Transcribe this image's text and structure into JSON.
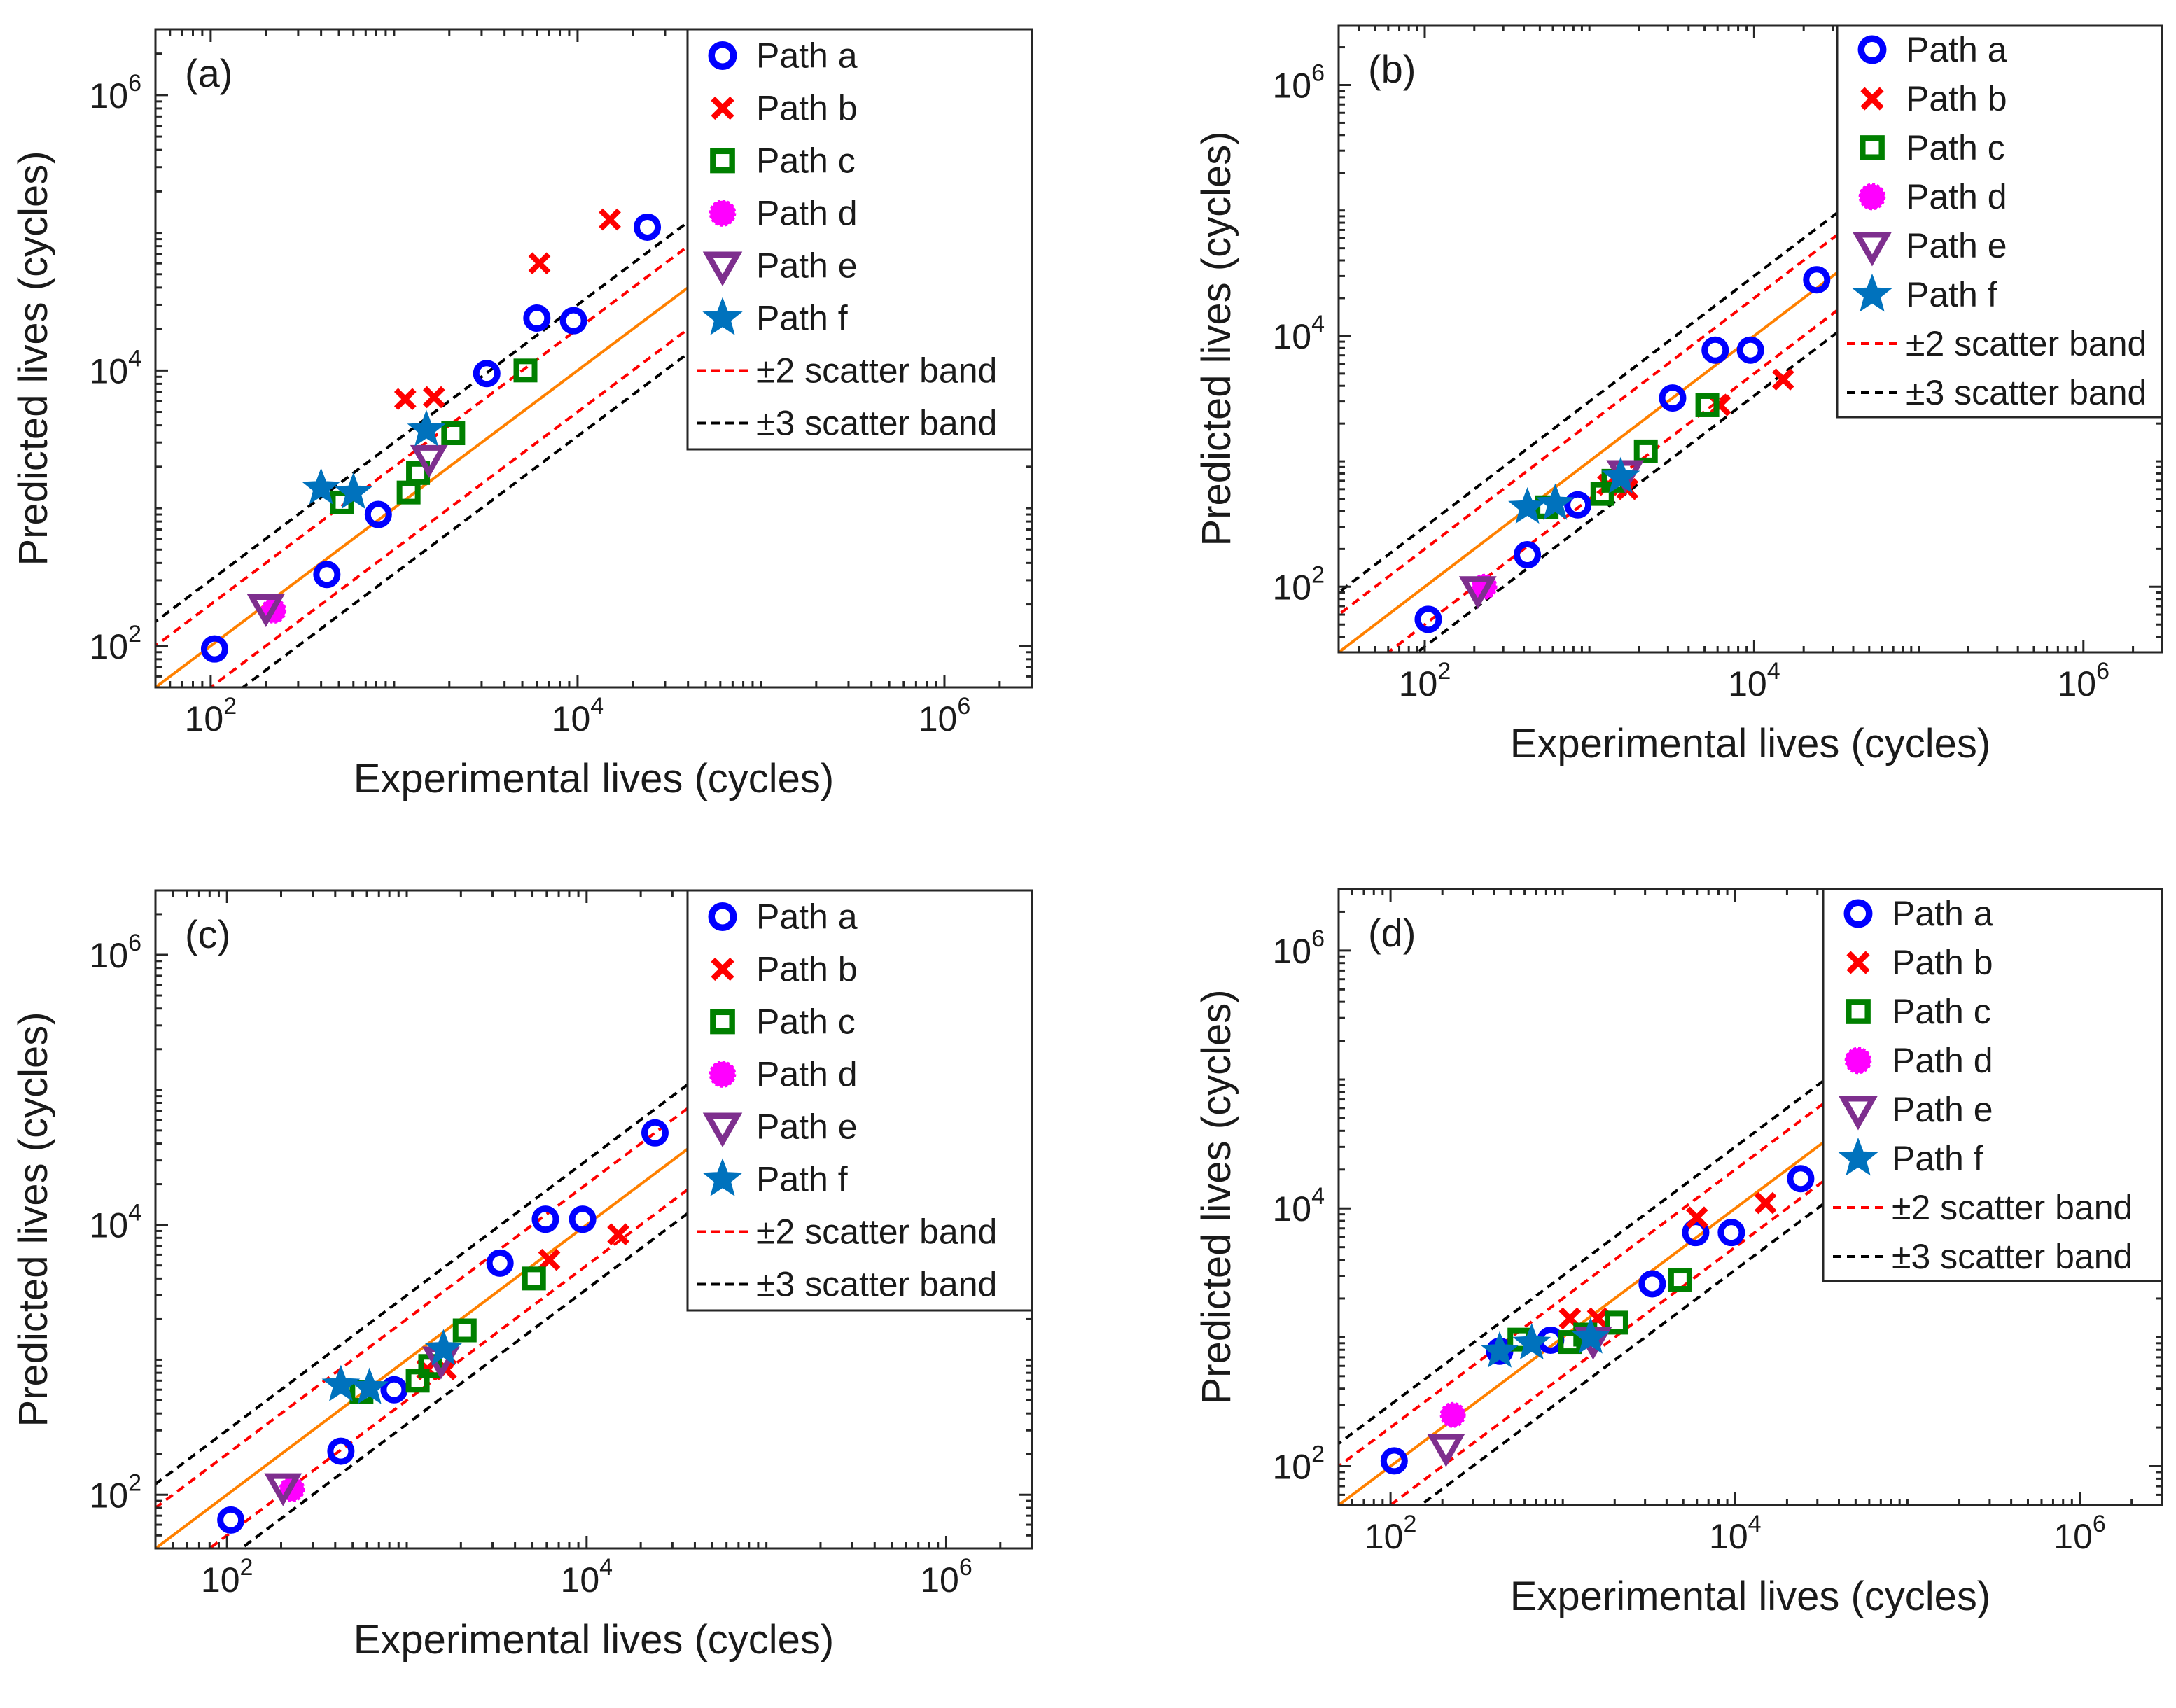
{
  "chart_data": [
    {
      "type": "scatter",
      "panel_label": "(a)",
      "xlabel": "Experimental lives (cycles)",
      "ylabel": "Predicted lives (cycles)",
      "xscale": "log",
      "yscale": "log",
      "xlim": [
        50,
        3000000
      ],
      "ylim": [
        50,
        3000000
      ],
      "xticks": [
        {
          "base": "10",
          "exp": "2",
          "value": 100
        },
        {
          "base": "10",
          "exp": "4",
          "value": 10000
        },
        {
          "base": "10",
          "exp": "6",
          "value": 1000000
        }
      ],
      "yticks": [
        {
          "base": "10",
          "exp": "2",
          "value": 100
        },
        {
          "base": "10",
          "exp": "4",
          "value": 10000
        },
        {
          "base": "10",
          "exp": "6",
          "value": 1000000
        }
      ],
      "legend_position": "top-right",
      "legend": [
        "Path a",
        "Path b",
        "Path c",
        "Path d",
        "Path e",
        "Path f",
        "±2 scatter band",
        "±3 scatter band"
      ],
      "series": [
        {
          "name": "Path a",
          "marker": "circle",
          "color": "#0000ff",
          "points": [
            [
              105,
              95
            ],
            [
              430,
              330
            ],
            [
              820,
              900
            ],
            [
              3200,
              9500
            ],
            [
              6000,
              24000
            ],
            [
              9500,
              23000
            ],
            [
              24000,
              110000
            ]
          ]
        },
        {
          "name": "Path b",
          "marker": "x",
          "color": "#ff0000",
          "points": [
            [
              1150,
              6200
            ],
            [
              1650,
              6400
            ],
            [
              6200,
              60000
            ],
            [
              15000,
              125000
            ]
          ]
        },
        {
          "name": "Path c",
          "marker": "square",
          "color": "#008000",
          "points": [
            [
              520,
              1100
            ],
            [
              1200,
              1300
            ],
            [
              1350,
              1800
            ],
            [
              2100,
              3500
            ],
            [
              5200,
              10000
            ]
          ]
        },
        {
          "name": "Path d",
          "marker": "filled-circle",
          "color": "#ff00ff",
          "points": [
            [
              220,
              180
            ]
          ]
        },
        {
          "name": "Path e",
          "marker": "triangle-down",
          "color": "#7e2f8e",
          "points": [
            [
              200,
              190
            ],
            [
              1550,
              2300
            ]
          ]
        },
        {
          "name": "Path f",
          "marker": "star",
          "color": "#0072bd",
          "points": [
            [
              400,
              1400
            ],
            [
              600,
              1300
            ],
            [
              1500,
              3700
            ]
          ]
        }
      ],
      "reference_lines": [
        {
          "name": "1:1 line",
          "factor": 1,
          "color": "#ff8000",
          "dash": "solid"
        },
        {
          "name": "±2 scatter band",
          "factor": 2,
          "color": "#ff0000",
          "dash": "dashed"
        },
        {
          "name": "±3 scatter band",
          "factor": 3,
          "color": "#000000",
          "dash": "dashed"
        }
      ]
    },
    {
      "type": "scatter",
      "panel_label": "(b)",
      "xlabel": "Experimental lives (cycles)",
      "ylabel": "Predicted lives (cycles)",
      "xscale": "log",
      "yscale": "log",
      "xlim": [
        30,
        3000000
      ],
      "ylim": [
        30,
        3000000
      ],
      "xticks": [
        {
          "base": "10",
          "exp": "2",
          "value": 100
        },
        {
          "base": "10",
          "exp": "4",
          "value": 10000
        },
        {
          "base": "10",
          "exp": "6",
          "value": 1000000
        }
      ],
      "yticks": [
        {
          "base": "10",
          "exp": "2",
          "value": 100
        },
        {
          "base": "10",
          "exp": "4",
          "value": 10000
        },
        {
          "base": "10",
          "exp": "6",
          "value": 1000000
        }
      ],
      "legend_position": "top-right",
      "legend": [
        "Path a",
        "Path b",
        "Path c",
        "Path d",
        "Path e",
        "Path f",
        "±2 scatter band",
        "±3 scatter band"
      ],
      "series": [
        {
          "name": "Path a",
          "marker": "circle",
          "color": "#0000ff",
          "points": [
            [
              105,
              55
            ],
            [
              420,
              180
            ],
            [
              850,
              450
            ],
            [
              3200,
              3200
            ],
            [
              5800,
              7700
            ],
            [
              9500,
              7700
            ],
            [
              24000,
              28000
            ]
          ]
        },
        {
          "name": "Path b",
          "marker": "x",
          "color": "#ff0000",
          "points": [
            [
              1300,
              650
            ],
            [
              1700,
              600
            ],
            [
              6200,
              2800
            ],
            [
              15000,
              4500
            ]
          ]
        },
        {
          "name": "Path c",
          "marker": "square",
          "color": "#008000",
          "points": [
            [
              550,
              430
            ],
            [
              1200,
              550
            ],
            [
              1400,
              700
            ],
            [
              2200,
              1200
            ],
            [
              5200,
              2800
            ]
          ]
        },
        {
          "name": "Path d",
          "marker": "filled-circle",
          "color": "#ff00ff",
          "points": [
            [
              230,
              100
            ]
          ]
        },
        {
          "name": "Path e",
          "marker": "triangle-down",
          "color": "#7e2f8e",
          "points": [
            [
              210,
              95
            ],
            [
              1650,
              800
            ]
          ]
        },
        {
          "name": "Path f",
          "marker": "star",
          "color": "#0072bd",
          "points": [
            [
              420,
              430
            ],
            [
              620,
              460
            ],
            [
              1550,
              750
            ]
          ]
        }
      ],
      "reference_lines": [
        {
          "name": "1:1 line",
          "factor": 1,
          "color": "#ff8000",
          "dash": "solid"
        },
        {
          "name": "±2 scatter band",
          "factor": 2,
          "color": "#ff0000",
          "dash": "dashed"
        },
        {
          "name": "±3 scatter band",
          "factor": 3,
          "color": "#000000",
          "dash": "dashed"
        }
      ]
    },
    {
      "type": "scatter",
      "panel_label": "(c)",
      "xlabel": "Experimental lives (cycles)",
      "ylabel": "Predicted lives (cycles)",
      "xscale": "log",
      "yscale": "log",
      "xlim": [
        40,
        3000000
      ],
      "ylim": [
        40,
        3000000
      ],
      "xticks": [
        {
          "base": "10",
          "exp": "2",
          "value": 100
        },
        {
          "base": "10",
          "exp": "4",
          "value": 10000
        },
        {
          "base": "10",
          "exp": "6",
          "value": 1000000
        }
      ],
      "yticks": [
        {
          "base": "10",
          "exp": "2",
          "value": 100
        },
        {
          "base": "10",
          "exp": "4",
          "value": 10000
        },
        {
          "base": "10",
          "exp": "6",
          "value": 1000000
        }
      ],
      "legend_position": "top-right",
      "legend": [
        "Path a",
        "Path b",
        "Path c",
        "Path d",
        "Path e",
        "Path f",
        "±2 scatter band",
        "±3 scatter band"
      ],
      "series": [
        {
          "name": "Path a",
          "marker": "circle",
          "color": "#0000ff",
          "points": [
            [
              105,
              65
            ],
            [
              430,
              210
            ],
            [
              850,
              600
            ],
            [
              3300,
              5200
            ],
            [
              5900,
              11000
            ],
            [
              9500,
              11000
            ],
            [
              24000,
              48000
            ]
          ]
        },
        {
          "name": "Path b",
          "marker": "x",
          "color": "#ff0000",
          "points": [
            [
              1300,
              850
            ],
            [
              1650,
              850
            ],
            [
              6200,
              5500
            ],
            [
              15000,
              8500
            ]
          ]
        },
        {
          "name": "Path c",
          "marker": "square",
          "color": "#008000",
          "points": [
            [
              560,
              580
            ],
            [
              1150,
              700
            ],
            [
              1350,
              900
            ],
            [
              2100,
              1650
            ],
            [
              5100,
              4000
            ]
          ]
        },
        {
          "name": "Path d",
          "marker": "filled-circle",
          "color": "#ff00ff",
          "points": [
            [
              230,
              110
            ]
          ]
        },
        {
          "name": "Path e",
          "marker": "triangle-down",
          "color": "#7e2f8e",
          "points": [
            [
              205,
              115
            ],
            [
              1550,
              1000
            ]
          ]
        },
        {
          "name": "Path f",
          "marker": "star",
          "color": "#0072bd",
          "points": [
            [
              430,
              650
            ],
            [
              620,
              620
            ],
            [
              1600,
              1200
            ]
          ]
        }
      ],
      "reference_lines": [
        {
          "name": "1:1 line",
          "factor": 1,
          "color": "#ff8000",
          "dash": "solid"
        },
        {
          "name": "±2 scatter band",
          "factor": 2,
          "color": "#ff0000",
          "dash": "dashed"
        },
        {
          "name": "±3 scatter band",
          "factor": 3,
          "color": "#000000",
          "dash": "dashed"
        }
      ]
    },
    {
      "type": "scatter",
      "panel_label": "(d)",
      "xlabel": "Experimental lives (cycles)",
      "ylabel": "Predicted lives (cycles)",
      "xscale": "log",
      "yscale": "log",
      "xlim": [
        50,
        3000000
      ],
      "ylim": [
        50,
        3000000
      ],
      "xticks": [
        {
          "base": "10",
          "exp": "2",
          "value": 100
        },
        {
          "base": "10",
          "exp": "4",
          "value": 10000
        },
        {
          "base": "10",
          "exp": "6",
          "value": 1000000
        }
      ],
      "yticks": [
        {
          "base": "10",
          "exp": "2",
          "value": 100
        },
        {
          "base": "10",
          "exp": "4",
          "value": 10000
        },
        {
          "base": "10",
          "exp": "6",
          "value": 1000000
        }
      ],
      "legend_position": "top-right",
      "legend": [
        "Path a",
        "Path b",
        "Path c",
        "Path d",
        "Path e",
        "Path f",
        "±2 scatter band",
        "±3 scatter band"
      ],
      "series": [
        {
          "name": "Path a",
          "marker": "circle",
          "color": "#0000ff",
          "points": [
            [
              105,
              110
            ],
            [
              430,
              780
            ],
            [
              850,
              950
            ],
            [
              3300,
              2600
            ],
            [
              5900,
              6500
            ],
            [
              9500,
              6500
            ],
            [
              24000,
              17000
            ]
          ]
        },
        {
          "name": "Path b",
          "marker": "x",
          "color": "#ff0000",
          "points": [
            [
              1100,
              1400
            ],
            [
              1600,
              1400
            ],
            [
              6000,
              8500
            ],
            [
              15000,
              11000
            ]
          ]
        },
        {
          "name": "Path c",
          "marker": "square",
          "color": "#008000",
          "points": [
            [
              560,
              960
            ],
            [
              1100,
              920
            ],
            [
              1350,
              1050
            ],
            [
              2050,
              1300
            ],
            [
              4800,
              2800
            ]
          ]
        },
        {
          "name": "Path d",
          "marker": "filled-circle",
          "color": "#ff00ff",
          "points": [
            [
              230,
              250
            ]
          ]
        },
        {
          "name": "Path e",
          "marker": "triangle-down",
          "color": "#7e2f8e",
          "points": [
            [
              210,
              140
            ],
            [
              1500,
              950
            ]
          ]
        },
        {
          "name": "Path f",
          "marker": "star",
          "color": "#0072bd",
          "points": [
            [
              430,
              780
            ],
            [
              660,
              900
            ],
            [
              1450,
              1000
            ]
          ]
        }
      ],
      "reference_lines": [
        {
          "name": "1:1 line",
          "factor": 1,
          "color": "#ff8000",
          "dash": "solid"
        },
        {
          "name": "±2 scatter band",
          "factor": 2,
          "color": "#ff0000",
          "dash": "dashed"
        },
        {
          "name": "±3 scatter band",
          "factor": 3,
          "color": "#000000",
          "dash": "dashed"
        }
      ]
    }
  ]
}
